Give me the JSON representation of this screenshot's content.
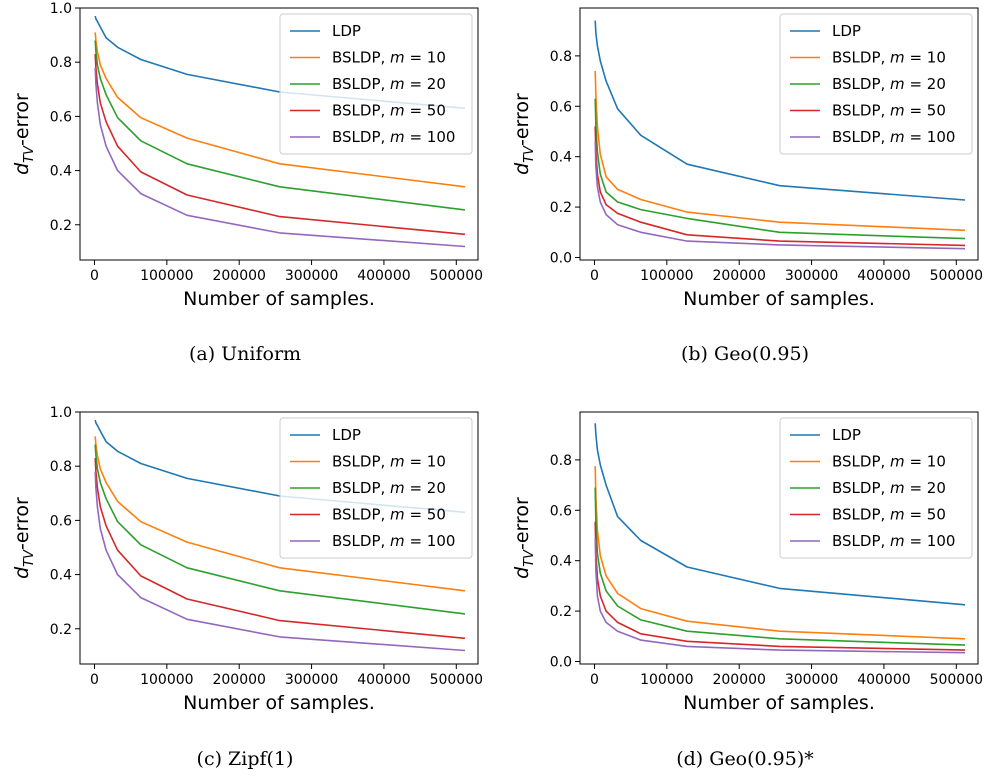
{
  "chart_data": [
    {
      "type": "line",
      "caption": "(a) Uniform",
      "xlabel": "Number of samples.",
      "ylabel": "d_TV-error",
      "xlim": [
        -20000,
        530000
      ],
      "ylim": [
        0.07,
        1.0
      ],
      "xticks": [
        0,
        100000,
        200000,
        300000,
        400000,
        500000
      ],
      "xtick_labels": [
        "0",
        "100000",
        "200000",
        "300000",
        "400000",
        "500000"
      ],
      "yticks": [
        0.2,
        0.4,
        0.6,
        0.8,
        1.0
      ],
      "ytick_labels": [
        "0.2",
        "0.4",
        "0.6",
        "0.8",
        "1.0"
      ],
      "legend_position": "top-right",
      "x": [
        1000,
        2000,
        4000,
        8000,
        16000,
        32000,
        64000,
        128000,
        256000,
        512000
      ],
      "series": [
        {
          "name": "LDP",
          "name_prefix": "LDP",
          "m_value": "",
          "color": "#1f77b4",
          "values": [
            0.97,
            0.96,
            0.95,
            0.93,
            0.89,
            0.855,
            0.81,
            0.755,
            0.69,
            0.63
          ]
        },
        {
          "name": "BSLDP, m = 10",
          "name_prefix": "BSLDP, ",
          "m_value": "10",
          "color": "#ff7f0e",
          "values": [
            0.91,
            0.88,
            0.84,
            0.79,
            0.74,
            0.67,
            0.595,
            0.52,
            0.425,
            0.34
          ]
        },
        {
          "name": "BSLDP, m = 20",
          "name_prefix": "BSLDP, ",
          "m_value": "20",
          "color": "#2ca02c",
          "values": [
            0.88,
            0.84,
            0.79,
            0.74,
            0.68,
            0.595,
            0.51,
            0.425,
            0.34,
            0.255
          ]
        },
        {
          "name": "BSLDP, m = 50",
          "name_prefix": "BSLDP, ",
          "m_value": "50",
          "color": "#d62728",
          "values": [
            0.83,
            0.78,
            0.72,
            0.65,
            0.58,
            0.49,
            0.395,
            0.31,
            0.23,
            0.165
          ]
        },
        {
          "name": "BSLDP, m = 100",
          "name_prefix": "BSLDP, ",
          "m_value": "100",
          "color": "#9467bd",
          "values": [
            0.78,
            0.72,
            0.65,
            0.57,
            0.49,
            0.4,
            0.315,
            0.235,
            0.17,
            0.12
          ]
        }
      ]
    },
    {
      "type": "line",
      "caption": "(b) Geo(0.95)",
      "xlabel": "Number of samples.",
      "ylabel": "d_TV-error",
      "xlim": [
        -20000,
        530000
      ],
      "ylim": [
        -0.01,
        0.99
      ],
      "xticks": [
        0,
        100000,
        200000,
        300000,
        400000,
        500000
      ],
      "xtick_labels": [
        "0",
        "100000",
        "200000",
        "300000",
        "400000",
        "500000"
      ],
      "yticks": [
        0.0,
        0.2,
        0.4,
        0.6,
        0.8
      ],
      "ytick_labels": [
        "0.0",
        "0.2",
        "0.4",
        "0.6",
        "0.8"
      ],
      "legend_position": "top-right",
      "x": [
        1000,
        2000,
        4000,
        8000,
        16000,
        32000,
        64000,
        128000,
        256000,
        512000
      ],
      "series": [
        {
          "name": "LDP",
          "name_prefix": "LDP",
          "m_value": "",
          "color": "#1f77b4",
          "values": [
            0.94,
            0.89,
            0.84,
            0.78,
            0.7,
            0.59,
            0.485,
            0.37,
            0.285,
            0.228
          ]
        },
        {
          "name": "BSLDP, m = 10",
          "name_prefix": "BSLDP, ",
          "m_value": "10",
          "color": "#ff7f0e",
          "values": [
            0.74,
            0.64,
            0.52,
            0.41,
            0.32,
            0.27,
            0.23,
            0.18,
            0.14,
            0.108
          ]
        },
        {
          "name": "BSLDP, m = 20",
          "name_prefix": "BSLDP, ",
          "m_value": "20",
          "color": "#2ca02c",
          "values": [
            0.63,
            0.52,
            0.42,
            0.33,
            0.26,
            0.22,
            0.19,
            0.155,
            0.1,
            0.075
          ]
        },
        {
          "name": "BSLDP, m = 50",
          "name_prefix": "BSLDP, ",
          "m_value": "50",
          "color": "#d62728",
          "values": [
            0.52,
            0.42,
            0.33,
            0.26,
            0.21,
            0.175,
            0.14,
            0.09,
            0.065,
            0.048
          ]
        },
        {
          "name": "BSLDP, m = 100",
          "name_prefix": "BSLDP, ",
          "m_value": "100",
          "color": "#9467bd",
          "values": [
            0.46,
            0.36,
            0.28,
            0.22,
            0.17,
            0.13,
            0.1,
            0.065,
            0.05,
            0.035
          ]
        }
      ]
    },
    {
      "type": "line",
      "caption": "(c) Zipf(1)",
      "xlabel": "Number of samples.",
      "ylabel": "d_TV-error",
      "xlim": [
        -20000,
        530000
      ],
      "ylim": [
        0.07,
        1.0
      ],
      "xticks": [
        0,
        100000,
        200000,
        300000,
        400000,
        500000
      ],
      "xtick_labels": [
        "0",
        "100000",
        "200000",
        "300000",
        "400000",
        "500000"
      ],
      "yticks": [
        0.2,
        0.4,
        0.6,
        0.8,
        1.0
      ],
      "ytick_labels": [
        "0.2",
        "0.4",
        "0.6",
        "0.8",
        "1.0"
      ],
      "legend_position": "top-right",
      "x": [
        1000,
        2000,
        4000,
        8000,
        16000,
        32000,
        64000,
        128000,
        256000,
        512000
      ],
      "series": [
        {
          "name": "LDP",
          "name_prefix": "LDP",
          "m_value": "",
          "color": "#1f77b4",
          "values": [
            0.97,
            0.96,
            0.95,
            0.93,
            0.89,
            0.855,
            0.81,
            0.755,
            0.69,
            0.63
          ]
        },
        {
          "name": "BSLDP, m = 10",
          "name_prefix": "BSLDP, ",
          "m_value": "10",
          "color": "#ff7f0e",
          "values": [
            0.91,
            0.88,
            0.84,
            0.79,
            0.74,
            0.67,
            0.595,
            0.52,
            0.425,
            0.34
          ]
        },
        {
          "name": "BSLDP, m = 20",
          "name_prefix": "BSLDP, ",
          "m_value": "20",
          "color": "#2ca02c",
          "values": [
            0.88,
            0.84,
            0.79,
            0.74,
            0.68,
            0.595,
            0.51,
            0.425,
            0.34,
            0.255
          ]
        },
        {
          "name": "BSLDP, m = 50",
          "name_prefix": "BSLDP, ",
          "m_value": "50",
          "color": "#d62728",
          "values": [
            0.83,
            0.78,
            0.72,
            0.65,
            0.58,
            0.49,
            0.395,
            0.31,
            0.23,
            0.165
          ]
        },
        {
          "name": "BSLDP, m = 100",
          "name_prefix": "BSLDP, ",
          "m_value": "100",
          "color": "#9467bd",
          "values": [
            0.78,
            0.72,
            0.65,
            0.57,
            0.49,
            0.4,
            0.315,
            0.235,
            0.17,
            0.12
          ]
        }
      ]
    },
    {
      "type": "line",
      "caption": "(d) Geo(0.95)*",
      "xlabel": "Number of samples.",
      "ylabel": "d_TV-error",
      "xlim": [
        -20000,
        530000
      ],
      "ylim": [
        -0.01,
        0.99
      ],
      "xticks": [
        0,
        100000,
        200000,
        300000,
        400000,
        500000
      ],
      "xtick_labels": [
        "0",
        "100000",
        "200000",
        "300000",
        "400000",
        "500000"
      ],
      "yticks": [
        0.0,
        0.2,
        0.4,
        0.6,
        0.8
      ],
      "ytick_labels": [
        "0.0",
        "0.2",
        "0.4",
        "0.6",
        "0.8"
      ],
      "legend_position": "top-right",
      "x": [
        1000,
        2000,
        4000,
        8000,
        16000,
        32000,
        64000,
        128000,
        256000,
        512000
      ],
      "series": [
        {
          "name": "LDP",
          "name_prefix": "LDP",
          "m_value": "",
          "color": "#1f77b4",
          "values": [
            0.945,
            0.9,
            0.84,
            0.78,
            0.7,
            0.575,
            0.48,
            0.375,
            0.29,
            0.225
          ]
        },
        {
          "name": "BSLDP, m = 10",
          "name_prefix": "BSLDP, ",
          "m_value": "10",
          "color": "#ff7f0e",
          "values": [
            0.775,
            0.65,
            0.52,
            0.42,
            0.34,
            0.27,
            0.21,
            0.16,
            0.12,
            0.09
          ]
        },
        {
          "name": "BSLDP, m = 20",
          "name_prefix": "BSLDP, ",
          "m_value": "20",
          "color": "#2ca02c",
          "values": [
            0.69,
            0.55,
            0.43,
            0.35,
            0.28,
            0.22,
            0.165,
            0.12,
            0.09,
            0.065
          ]
        },
        {
          "name": "BSLDP, m = 50",
          "name_prefix": "BSLDP, ",
          "m_value": "50",
          "color": "#d62728",
          "values": [
            0.555,
            0.43,
            0.33,
            0.26,
            0.2,
            0.155,
            0.11,
            0.08,
            0.06,
            0.045
          ]
        },
        {
          "name": "BSLDP, m = 100",
          "name_prefix": "BSLDP, ",
          "m_value": "100",
          "color": "#9467bd",
          "values": [
            0.49,
            0.36,
            0.26,
            0.2,
            0.155,
            0.12,
            0.085,
            0.06,
            0.045,
            0.035
          ]
        }
      ]
    }
  ]
}
